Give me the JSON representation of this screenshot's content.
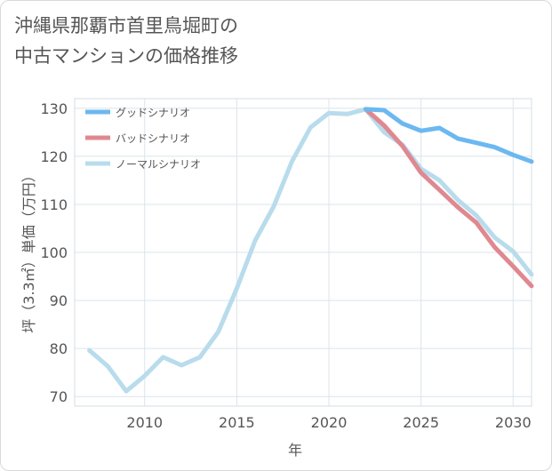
{
  "title_lines": [
    "沖縄県那覇市首里鳥堀町の",
    "中古マンションの価格推移"
  ],
  "chart_data": {
    "type": "line",
    "title": "沖縄県那覇市首里鳥堀町の中古マンションの価格推移",
    "xlabel": "年",
    "ylabel": "坪（3.3㎡）単価（万円）",
    "xlim": [
      2006.2,
      2031
    ],
    "ylim": [
      68,
      132
    ],
    "xticks": [
      2010,
      2015,
      2020,
      2025,
      2030
    ],
    "yticks": [
      70,
      80,
      90,
      100,
      110,
      120,
      130
    ],
    "grid": true,
    "legend_position": "top-left",
    "series": [
      {
        "name": "グッドシナリオ",
        "color": "#6cb8f0",
        "x": [
          2022,
          2023,
          2024,
          2025,
          2026,
          2027,
          2028,
          2029,
          2030,
          2031
        ],
        "y": [
          129.8,
          129.6,
          126.8,
          125.3,
          125.9,
          123.7,
          122.8,
          121.9,
          120.3,
          118.9
        ]
      },
      {
        "name": "バッドシナリオ",
        "color": "#e08890",
        "x": [
          2022,
          2023,
          2024,
          2025,
          2026,
          2027,
          2028,
          2029,
          2030,
          2031
        ],
        "y": [
          129.8,
          126.4,
          122.1,
          116.6,
          113.0,
          109.4,
          106.2,
          101.1,
          97.1,
          93.0
        ]
      },
      {
        "name": "ノーマルシナリオ",
        "color": "#b8dcec",
        "x": [
          2007,
          2008,
          2009,
          2010,
          2011,
          2012,
          2013,
          2014,
          2015,
          2016,
          2017,
          2018,
          2019,
          2020,
          2021,
          2022,
          2023,
          2024,
          2025,
          2026,
          2027,
          2028,
          2029,
          2030,
          2031
        ],
        "y": [
          79.6,
          76.3,
          71.1,
          74.3,
          78.2,
          76.5,
          78.2,
          83.5,
          92.5,
          102.5,
          109.5,
          119.0,
          126.0,
          129.0,
          128.8,
          129.8,
          125.0,
          122.4,
          117.4,
          115.0,
          110.9,
          107.7,
          103.1,
          100.2,
          95.4
        ]
      }
    ]
  }
}
